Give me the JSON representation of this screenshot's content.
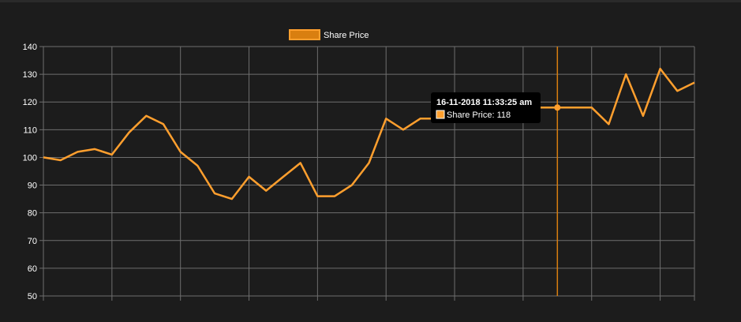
{
  "colors": {
    "background": "#1c1c1c",
    "grid": "#6e6e6e",
    "axis_text": "#ffffff",
    "series": "#ff9f2e",
    "crosshair": "#d97f10",
    "tooltip_bg": "#000000"
  },
  "chart_data": {
    "type": "line",
    "legend": {
      "position": "top-center",
      "label": "Share Price"
    },
    "y_ticks": [
      50,
      60,
      70,
      80,
      90,
      100,
      110,
      120,
      130,
      140
    ],
    "ylim": [
      50,
      140
    ],
    "grid": true,
    "series": [
      {
        "name": "Share Price",
        "values": [
          100,
          99,
          102,
          103,
          101,
          109,
          115,
          112,
          102,
          97,
          87,
          85,
          93,
          88,
          93,
          98,
          86,
          86,
          90,
          98,
          114,
          110,
          114,
          114,
          114,
          118,
          119,
          118,
          118,
          118,
          118,
          118,
          118,
          112,
          130,
          115,
          132,
          124,
          127
        ]
      }
    ],
    "tooltip": {
      "index": 30,
      "title": "16-11-2018 11:33:25 am",
      "label": "Share Price: 118"
    }
  }
}
